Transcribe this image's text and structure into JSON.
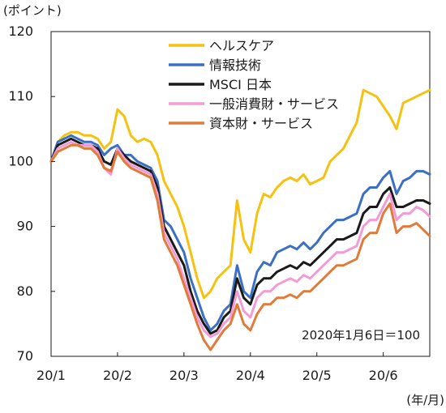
{
  "chart_data": {
    "type": "line",
    "ylabel": "(ポイント)",
    "xunit": "(年/月)",
    "note": "2020年1月6日＝100",
    "ylim": [
      70,
      120
    ],
    "yticks": [
      70,
      80,
      90,
      100,
      110,
      120
    ],
    "xlim": [
      0,
      5.7
    ],
    "xticks": [
      {
        "label": "20/1",
        "pos": 0
      },
      {
        "label": "20/2",
        "pos": 1
      },
      {
        "label": "20/3",
        "pos": 2
      },
      {
        "label": "20/4",
        "pos": 3
      },
      {
        "label": "20/5",
        "pos": 4
      },
      {
        "label": "20/6",
        "pos": 5
      }
    ],
    "grid": false,
    "legend_position": "top-center",
    "series": [
      {
        "name": "ヘルスケア",
        "color": "#f5c211",
        "points": [
          [
            0,
            100
          ],
          [
            0.1,
            103
          ],
          [
            0.2,
            104
          ],
          [
            0.3,
            104.5
          ],
          [
            0.4,
            104.5
          ],
          [
            0.5,
            104
          ],
          [
            0.6,
            104
          ],
          [
            0.7,
            103.5
          ],
          [
            0.8,
            102
          ],
          [
            0.9,
            103
          ],
          [
            1.0,
            108
          ],
          [
            1.1,
            107
          ],
          [
            1.2,
            104
          ],
          [
            1.3,
            103
          ],
          [
            1.4,
            103.5
          ],
          [
            1.5,
            103
          ],
          [
            1.6,
            101
          ],
          [
            1.7,
            97
          ],
          [
            1.8,
            95
          ],
          [
            1.9,
            93
          ],
          [
            2.0,
            90
          ],
          [
            2.1,
            86
          ],
          [
            2.2,
            82
          ],
          [
            2.3,
            79
          ],
          [
            2.4,
            80
          ],
          [
            2.5,
            82
          ],
          [
            2.6,
            83
          ],
          [
            2.7,
            84
          ],
          [
            2.8,
            94
          ],
          [
            2.9,
            88
          ],
          [
            3.0,
            86
          ],
          [
            3.1,
            92
          ],
          [
            3.2,
            95
          ],
          [
            3.3,
            94.5
          ],
          [
            3.4,
            96
          ],
          [
            3.5,
            97
          ],
          [
            3.6,
            97.5
          ],
          [
            3.7,
            97
          ],
          [
            3.8,
            98
          ],
          [
            3.9,
            96.5
          ],
          [
            4.0,
            97
          ],
          [
            4.1,
            97.5
          ],
          [
            4.2,
            100
          ],
          [
            4.3,
            101
          ],
          [
            4.4,
            102
          ],
          [
            4.5,
            104
          ],
          [
            4.6,
            106
          ],
          [
            4.7,
            111
          ],
          [
            4.8,
            110.5
          ],
          [
            4.9,
            110
          ],
          [
            5.0,
            108.5
          ],
          [
            5.1,
            107
          ],
          [
            5.2,
            105
          ],
          [
            5.3,
            109
          ],
          [
            5.4,
            109.5
          ],
          [
            5.5,
            110
          ],
          [
            5.6,
            110.5
          ],
          [
            5.7,
            111
          ]
        ]
      },
      {
        "name": "情報技術",
        "color": "#3b6fc4",
        "points": [
          [
            0,
            100
          ],
          [
            0.1,
            103
          ],
          [
            0.2,
            103.5
          ],
          [
            0.3,
            104
          ],
          [
            0.4,
            103.5
          ],
          [
            0.5,
            103
          ],
          [
            0.6,
            103
          ],
          [
            0.7,
            102.5
          ],
          [
            0.8,
            101
          ],
          [
            0.9,
            102
          ],
          [
            1.0,
            102.5
          ],
          [
            1.1,
            101
          ],
          [
            1.2,
            101
          ],
          [
            1.3,
            100
          ],
          [
            1.4,
            99.5
          ],
          [
            1.5,
            99
          ],
          [
            1.6,
            97
          ],
          [
            1.7,
            91
          ],
          [
            1.8,
            90
          ],
          [
            1.9,
            88
          ],
          [
            2.0,
            86
          ],
          [
            2.1,
            82
          ],
          [
            2.2,
            79
          ],
          [
            2.3,
            76
          ],
          [
            2.4,
            74
          ],
          [
            2.5,
            75
          ],
          [
            2.6,
            77
          ],
          [
            2.7,
            78
          ],
          [
            2.8,
            84
          ],
          [
            2.9,
            80
          ],
          [
            3.0,
            79
          ],
          [
            3.1,
            83
          ],
          [
            3.2,
            84.5
          ],
          [
            3.3,
            84
          ],
          [
            3.4,
            86
          ],
          [
            3.5,
            86.5
          ],
          [
            3.6,
            87
          ],
          [
            3.7,
            86.5
          ],
          [
            3.8,
            87.5
          ],
          [
            3.9,
            86.5
          ],
          [
            4.0,
            87.5
          ],
          [
            4.1,
            89
          ],
          [
            4.2,
            90
          ],
          [
            4.3,
            91
          ],
          [
            4.4,
            91
          ],
          [
            4.5,
            91.5
          ],
          [
            4.6,
            92
          ],
          [
            4.7,
            95
          ],
          [
            4.8,
            96
          ],
          [
            4.9,
            96
          ],
          [
            5.0,
            97.5
          ],
          [
            5.1,
            98.5
          ],
          [
            5.2,
            95
          ],
          [
            5.3,
            97
          ],
          [
            5.4,
            97.5
          ],
          [
            5.5,
            98.5
          ],
          [
            5.6,
            98.5
          ],
          [
            5.7,
            98
          ]
        ]
      },
      {
        "name": "MSCI 日本",
        "color": "#1a1a1a",
        "points": [
          [
            0,
            100
          ],
          [
            0.1,
            102.5
          ],
          [
            0.2,
            103
          ],
          [
            0.3,
            103.5
          ],
          [
            0.4,
            103
          ],
          [
            0.5,
            102.5
          ],
          [
            0.6,
            102.5
          ],
          [
            0.7,
            102
          ],
          [
            0.8,
            100
          ],
          [
            0.9,
            99.5
          ],
          [
            1.0,
            102
          ],
          [
            1.1,
            101
          ],
          [
            1.2,
            100
          ],
          [
            1.3,
            99.5
          ],
          [
            1.4,
            99
          ],
          [
            1.5,
            98.5
          ],
          [
            1.6,
            96
          ],
          [
            1.7,
            90
          ],
          [
            1.8,
            88
          ],
          [
            1.9,
            86
          ],
          [
            2.0,
            84
          ],
          [
            2.1,
            80
          ],
          [
            2.2,
            77
          ],
          [
            2.3,
            75
          ],
          [
            2.4,
            73.5
          ],
          [
            2.5,
            74
          ],
          [
            2.6,
            76
          ],
          [
            2.7,
            77
          ],
          [
            2.8,
            82
          ],
          [
            2.9,
            79
          ],
          [
            3.0,
            78
          ],
          [
            3.1,
            81
          ],
          [
            3.2,
            82
          ],
          [
            3.3,
            82
          ],
          [
            3.4,
            83
          ],
          [
            3.5,
            83.5
          ],
          [
            3.6,
            84
          ],
          [
            3.7,
            83.5
          ],
          [
            3.8,
            84.5
          ],
          [
            3.9,
            84
          ],
          [
            4.0,
            85
          ],
          [
            4.1,
            86
          ],
          [
            4.2,
            87
          ],
          [
            4.3,
            88
          ],
          [
            4.4,
            88
          ],
          [
            4.5,
            88.5
          ],
          [
            4.6,
            89
          ],
          [
            4.7,
            92
          ],
          [
            4.8,
            93
          ],
          [
            4.9,
            93
          ],
          [
            5.0,
            95
          ],
          [
            5.1,
            96
          ],
          [
            5.2,
            93
          ],
          [
            5.3,
            93
          ],
          [
            5.4,
            93.5
          ],
          [
            5.5,
            94
          ],
          [
            5.6,
            94
          ],
          [
            5.7,
            93.5
          ]
        ]
      },
      {
        "name": "一般消費財・サービス",
        "color": "#f29bd6",
        "points": [
          [
            0,
            100
          ],
          [
            0.1,
            102
          ],
          [
            0.2,
            102.5
          ],
          [
            0.3,
            103
          ],
          [
            0.4,
            102.5
          ],
          [
            0.5,
            102.5
          ],
          [
            0.6,
            102.5
          ],
          [
            0.7,
            101.5
          ],
          [
            0.8,
            99
          ],
          [
            0.9,
            98
          ],
          [
            1.0,
            102
          ],
          [
            1.1,
            100.5
          ],
          [
            1.2,
            99.5
          ],
          [
            1.3,
            99
          ],
          [
            1.4,
            98.5
          ],
          [
            1.5,
            98
          ],
          [
            1.6,
            95
          ],
          [
            1.7,
            89
          ],
          [
            1.8,
            87
          ],
          [
            1.9,
            85
          ],
          [
            2.0,
            82
          ],
          [
            2.1,
            79
          ],
          [
            2.2,
            76
          ],
          [
            2.3,
            74
          ],
          [
            2.4,
            73
          ],
          [
            2.5,
            73.5
          ],
          [
            2.6,
            75
          ],
          [
            2.7,
            76
          ],
          [
            2.8,
            80
          ],
          [
            2.9,
            77
          ],
          [
            3.0,
            76
          ],
          [
            3.1,
            79
          ],
          [
            3.2,
            80
          ],
          [
            3.3,
            80
          ],
          [
            3.4,
            81
          ],
          [
            3.5,
            81.5
          ],
          [
            3.6,
            82
          ],
          [
            3.7,
            81.5
          ],
          [
            3.8,
            82.5
          ],
          [
            3.9,
            82
          ],
          [
            4.0,
            83
          ],
          [
            4.1,
            84
          ],
          [
            4.2,
            85
          ],
          [
            4.3,
            86
          ],
          [
            4.4,
            86
          ],
          [
            4.5,
            86.5
          ],
          [
            4.6,
            87
          ],
          [
            4.7,
            90
          ],
          [
            4.8,
            91
          ],
          [
            4.9,
            91
          ],
          [
            5.0,
            93
          ],
          [
            5.1,
            95
          ],
          [
            5.2,
            91
          ],
          [
            5.3,
            92
          ],
          [
            5.4,
            92
          ],
          [
            5.5,
            93
          ],
          [
            5.6,
            92.5
          ],
          [
            5.7,
            91.5
          ]
        ]
      },
      {
        "name": "資本財・サービス",
        "color": "#e07b39",
        "points": [
          [
            0,
            100
          ],
          [
            0.1,
            101.5
          ],
          [
            0.2,
            102
          ],
          [
            0.3,
            102.5
          ],
          [
            0.4,
            102.5
          ],
          [
            0.5,
            102
          ],
          [
            0.6,
            102
          ],
          [
            0.7,
            101
          ],
          [
            0.8,
            99
          ],
          [
            0.9,
            98.5
          ],
          [
            1.0,
            101.5
          ],
          [
            1.1,
            100
          ],
          [
            1.2,
            99
          ],
          [
            1.3,
            98.5
          ],
          [
            1.4,
            98
          ],
          [
            1.5,
            97.5
          ],
          [
            1.6,
            94
          ],
          [
            1.7,
            88
          ],
          [
            1.8,
            86
          ],
          [
            1.9,
            84
          ],
          [
            2.0,
            81
          ],
          [
            2.1,
            78
          ],
          [
            2.2,
            75
          ],
          [
            2.3,
            72.5
          ],
          [
            2.4,
            71
          ],
          [
            2.5,
            72.5
          ],
          [
            2.6,
            74
          ],
          [
            2.7,
            75
          ],
          [
            2.8,
            78
          ],
          [
            2.9,
            75
          ],
          [
            3.0,
            74
          ],
          [
            3.1,
            76.5
          ],
          [
            3.2,
            78
          ],
          [
            3.3,
            78
          ],
          [
            3.4,
            79
          ],
          [
            3.5,
            79
          ],
          [
            3.6,
            79.5
          ],
          [
            3.7,
            79
          ],
          [
            3.8,
            80
          ],
          [
            3.9,
            80
          ],
          [
            4.0,
            81
          ],
          [
            4.1,
            82
          ],
          [
            4.2,
            83
          ],
          [
            4.3,
            84
          ],
          [
            4.4,
            84
          ],
          [
            4.5,
            84.5
          ],
          [
            4.6,
            85
          ],
          [
            4.7,
            88
          ],
          [
            4.8,
            89
          ],
          [
            4.9,
            89
          ],
          [
            5.0,
            92
          ],
          [
            5.1,
            93.5
          ],
          [
            5.2,
            89
          ],
          [
            5.3,
            90
          ],
          [
            5.4,
            90
          ],
          [
            5.5,
            90.5
          ],
          [
            5.6,
            89.5
          ],
          [
            5.7,
            88.5
          ]
        ]
      }
    ]
  }
}
